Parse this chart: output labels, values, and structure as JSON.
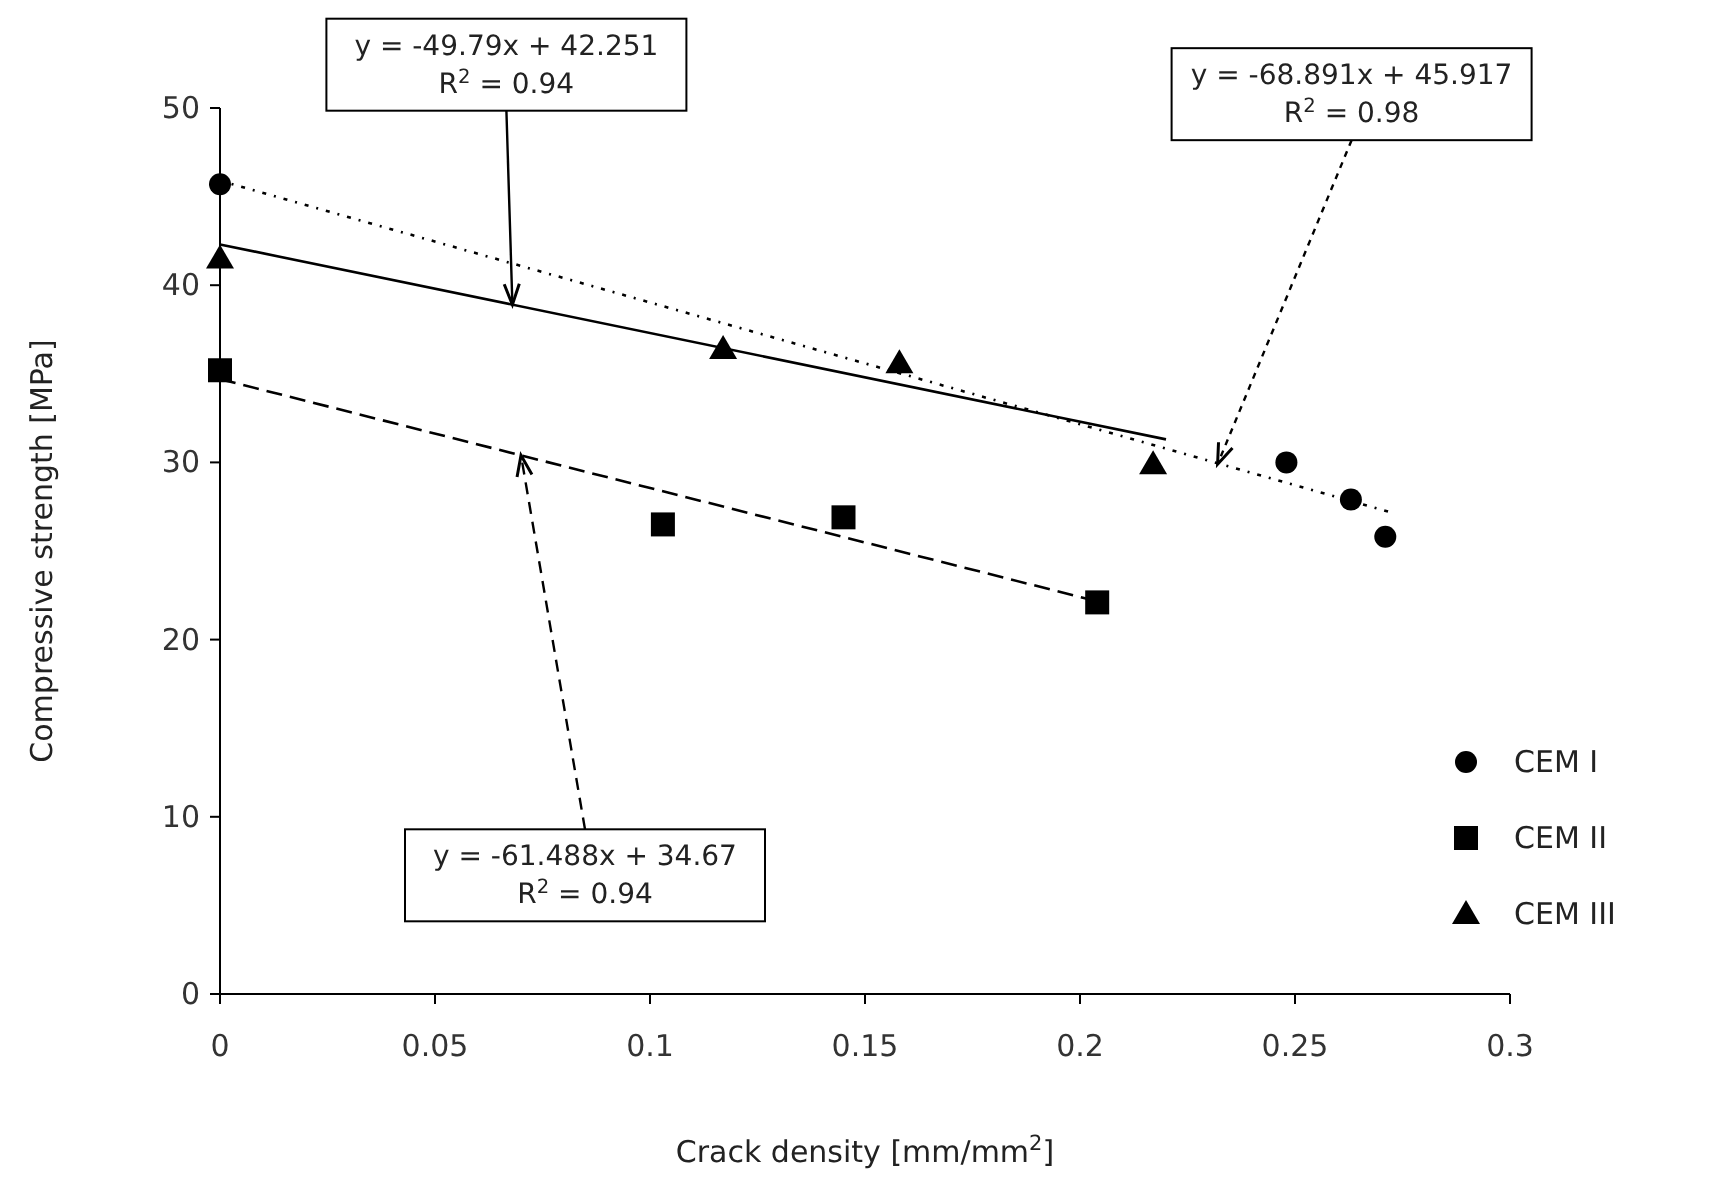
{
  "chart_data": {
    "type": "scatter",
    "xlabel": "Crack density [mm/mm$^{2}$]",
    "ylabel": "Compressive strength [MPa]",
    "xlim": [
      0,
      0.3
    ],
    "ylim": [
      0,
      50
    ],
    "xticks": [
      0,
      0.05,
      0.1,
      0.15,
      0.2,
      0.25,
      0.3
    ],
    "yticks": [
      0,
      10,
      20,
      30,
      40,
      50
    ],
    "grid": false,
    "legend": "right",
    "series": [
      {
        "name": "CEM I",
        "type": "scatter",
        "marker": "circle",
        "color": "#000000",
        "x": [
          0,
          0.248,
          0.263,
          0.271
        ],
        "values": [
          45.7,
          30.0,
          27.9,
          25.8
        ]
      },
      {
        "name": "CEM II",
        "type": "scatter",
        "marker": "square",
        "color": "#000000",
        "x": [
          0,
          0.103,
          0.145,
          0.204
        ],
        "values": [
          35.2,
          26.5,
          26.9,
          22.1
        ]
      },
      {
        "name": "CEM III",
        "type": "scatter",
        "marker": "triangle",
        "color": "#000000",
        "x": [
          0,
          0.117,
          0.158,
          0.217
        ],
        "values": [
          41.5,
          36.4,
          35.6,
          29.9
        ]
      },
      {
        "type": "line",
        "marker": "none",
        "line_style": "dotted",
        "color": "#000000",
        "x": [
          0,
          0.272
        ],
        "values": [
          45.9,
          27.2
        ]
      },
      {
        "type": "line",
        "marker": "none",
        "line_style": "dashed",
        "color": "#000000",
        "x": [
          0,
          0.205
        ],
        "values": [
          34.7,
          22.1
        ]
      },
      {
        "type": "line",
        "marker": "none",
        "line_style": "solid",
        "color": "#000000",
        "x": [
          0,
          0.22
        ],
        "values": [
          42.3,
          31.3
        ]
      }
    ],
    "annotations": [
      {
        "text": "y = -49.79x + 42.251\nR$^{2}$ = 0.94",
        "x": 0.068,
        "y": 38.9
      },
      {
        "text": "y = -68.891x + 45.917\nR$^{2}$ = 0.98",
        "x": 0.232,
        "y": 29.9
      },
      {
        "text": "y = -61.488x + 34.67\nR$^{2}$ = 0.94",
        "x": 0.07,
        "y": 30.4
      }
    ]
  }
}
